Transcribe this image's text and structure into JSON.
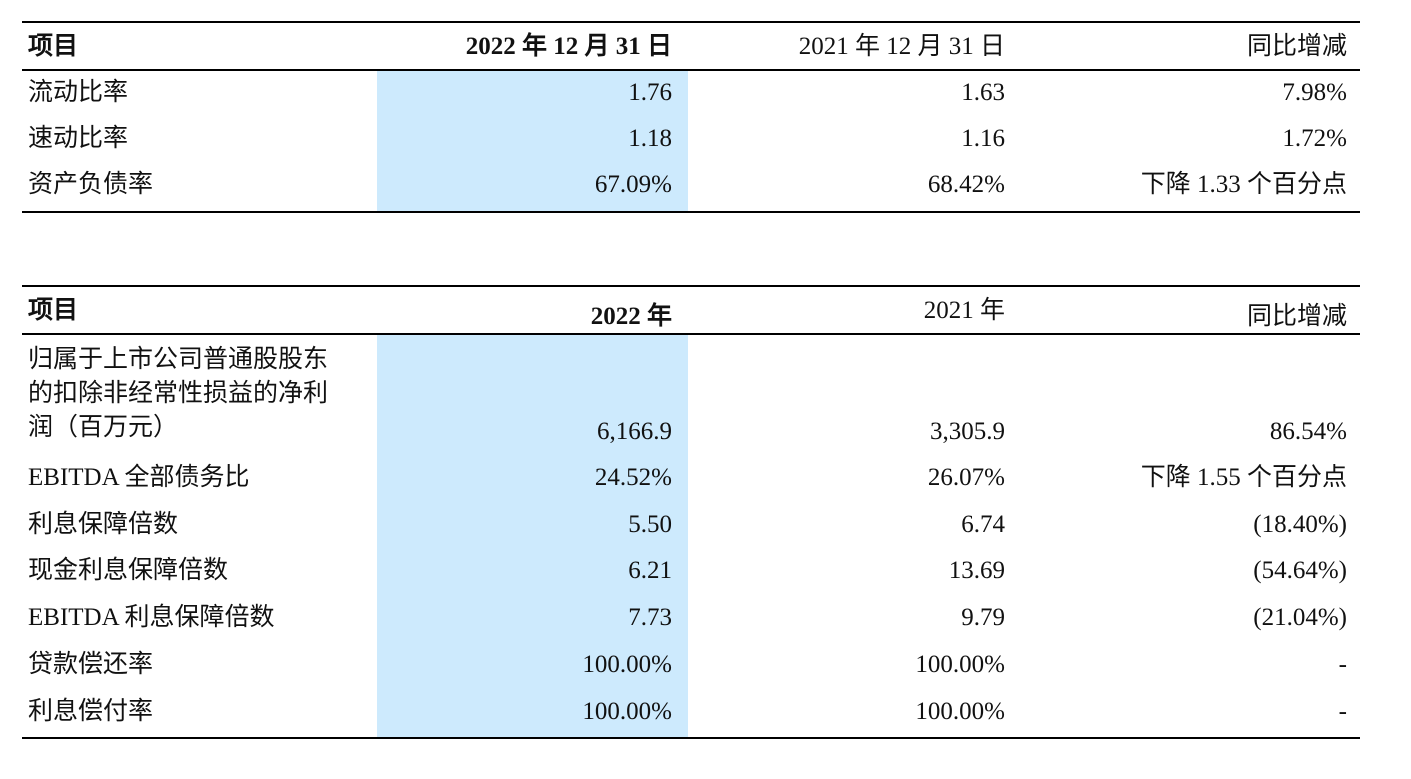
{
  "table1": {
    "headers": [
      "项目",
      "2022 年 12 月 31 日",
      "2021 年 12 月 31 日",
      "同比增减"
    ],
    "rows": [
      [
        "流动比率",
        "1.76",
        "1.63",
        "7.98%"
      ],
      [
        "速动比率",
        "1.18",
        "1.16",
        "1.72%"
      ],
      [
        "资产负债率",
        "67.09%",
        "68.42%",
        "下降 1.33 个百分点"
      ]
    ]
  },
  "table2": {
    "headers": [
      "项目",
      "2022 年",
      "2021 年",
      "同比增减"
    ],
    "first_row_label_lines": [
      "归属于上市公司普通股股东",
      "的扣除非经常性损益的净利",
      "润（百万元）"
    ],
    "first_row_values": [
      "6,166.9",
      "3,305.9",
      "86.54%"
    ],
    "rows": [
      [
        "EBITDA 全部债务比",
        "24.52%",
        "26.07%",
        "下降 1.55 个百分点"
      ],
      [
        "利息保障倍数",
        "5.50",
        "6.74",
        "(18.40%)"
      ],
      [
        "现金利息保障倍数",
        "6.21",
        "13.69",
        "(54.64%)"
      ],
      [
        "EBITDA 利息保障倍数",
        "7.73",
        "9.79",
        "(21.04%)"
      ],
      [
        "贷款偿还率",
        "100.00%",
        "100.00%",
        "-"
      ],
      [
        "利息偿付率",
        "100.00%",
        "100.00%",
        "-"
      ]
    ]
  },
  "colors": {
    "highlight": "#cdeafd"
  }
}
